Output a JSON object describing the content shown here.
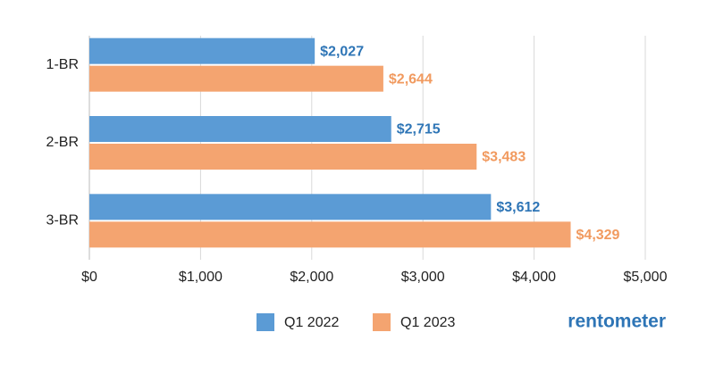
{
  "chart_data": {
    "type": "bar",
    "orientation": "horizontal",
    "categories": [
      "1-BR",
      "2-BR",
      "3-BR"
    ],
    "series": [
      {
        "name": "Q1 2022",
        "color": "#5b9bd5",
        "label_color": "#2e75b6",
        "values": [
          2027,
          2715,
          3612
        ],
        "value_labels": [
          "$2,027",
          "$2,715",
          "$3,612"
        ]
      },
      {
        "name": "Q1 2023",
        "color": "#f4a470",
        "label_color": "#f19a5f",
        "values": [
          2644,
          3483,
          4329
        ],
        "value_labels": [
          "$2,644",
          "$3,483",
          "$4,329"
        ]
      }
    ],
    "xlim": [
      0,
      5000
    ],
    "xticks": [
      {
        "value": 0,
        "label": "$0"
      },
      {
        "value": 1000,
        "label": "$1,000"
      },
      {
        "value": 2000,
        "label": "$2,000"
      },
      {
        "value": 3000,
        "label": "$3,000"
      },
      {
        "value": 4000,
        "label": "$4,000"
      },
      {
        "value": 5000,
        "label": "$5,000"
      }
    ],
    "grid": true,
    "legend": "bottom"
  },
  "logo": "rentometer"
}
